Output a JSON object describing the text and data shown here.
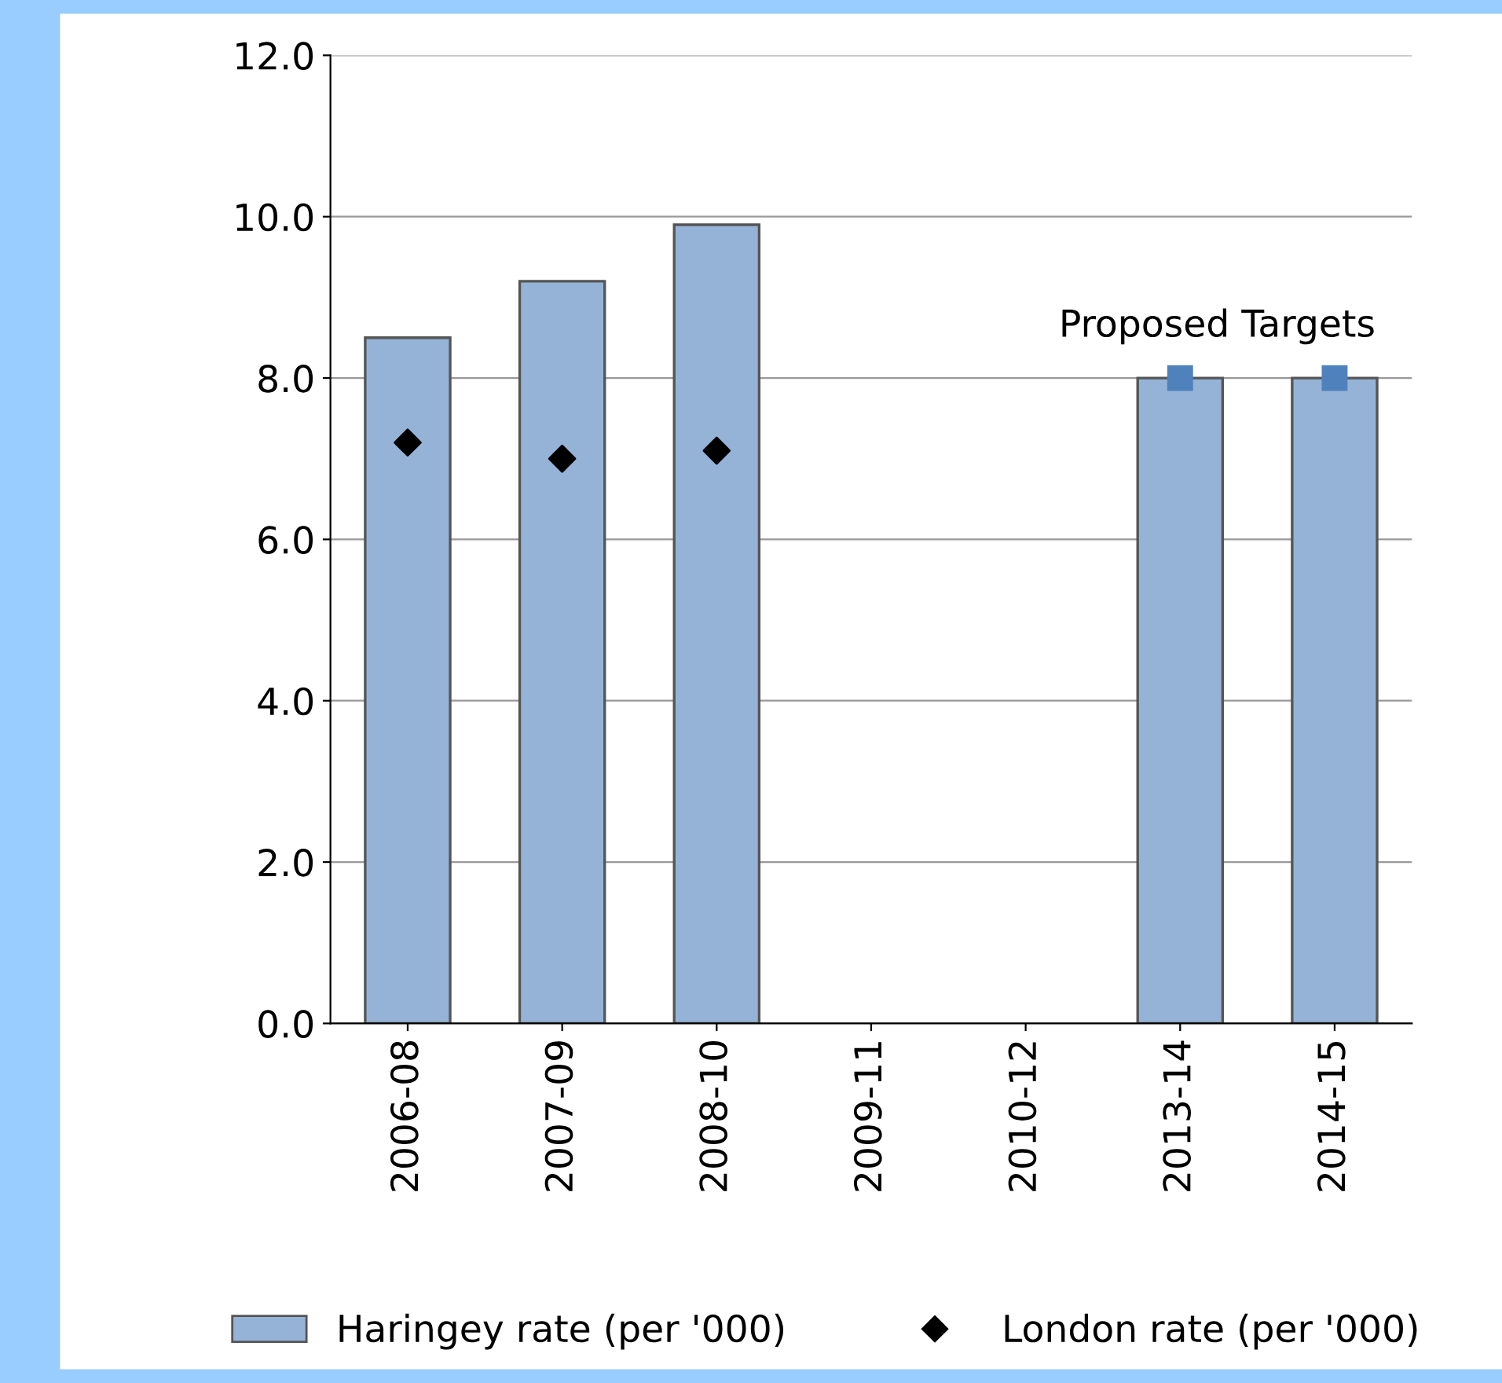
{
  "chart_data": {
    "type": "bar",
    "categories": [
      "2006-08",
      "2007-09",
      "2008-10",
      "2009-11",
      "2010-12",
      "2013-14",
      "2014-15"
    ],
    "series": [
      {
        "name": "Haringey rate (per '000)",
        "color": "#95b3d7",
        "values": [
          8.5,
          9.2,
          9.9,
          null,
          null,
          8.0,
          8.0
        ]
      },
      {
        "name": "London rate (per '000)",
        "type": "scatter",
        "marker": "diamond",
        "color": "#000000",
        "values": [
          7.2,
          7.0,
          7.1,
          null,
          null,
          null,
          null
        ]
      },
      {
        "type": "scatter",
        "marker": "square",
        "color": "#4f81bd",
        "values": [
          null,
          null,
          null,
          null,
          null,
          8.0,
          8.0
        ]
      }
    ],
    "annotations": [
      "Proposed Targets"
    ],
    "ylim": [
      0,
      12
    ],
    "yticks": [
      {
        "value": 0,
        "label": "0.0"
      },
      {
        "value": 2,
        "label": "2.0"
      },
      {
        "value": 4,
        "label": "4.0"
      },
      {
        "value": 6,
        "label": "6.0"
      },
      {
        "value": 8,
        "label": "8.0"
      },
      {
        "value": 10,
        "label": "10.0"
      },
      {
        "value": 12,
        "label": "12.0"
      }
    ],
    "grid": "y",
    "legend": "bottom"
  }
}
